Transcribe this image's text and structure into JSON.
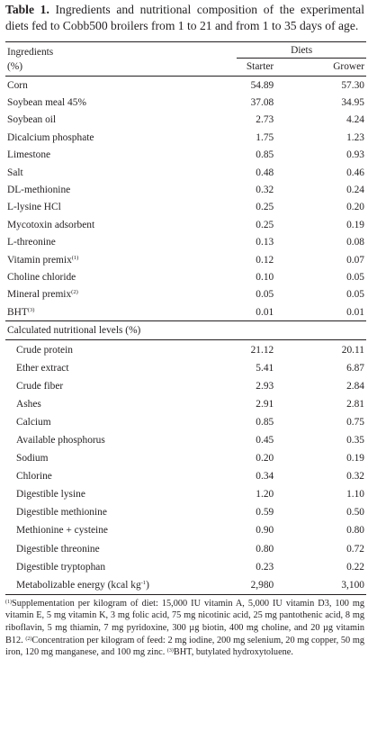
{
  "caption": {
    "label": "Table 1.",
    "text": " Ingredients and nutritional composition of the experimental diets fed to Cobb500 broilers from 1 to 21 and from 1 to 35 days of age."
  },
  "header": {
    "ingredients": "Ingredients",
    "unit": "(%)",
    "diets": "Diets",
    "starter": "Starter",
    "grower": "Grower"
  },
  "ingredients": [
    {
      "name": "Corn",
      "sup": "",
      "starter": "54.89",
      "grower": "57.30"
    },
    {
      "name": "Soybean meal 45%",
      "sup": "",
      "starter": "37.08",
      "grower": "34.95"
    },
    {
      "name": "Soybean oil",
      "sup": "",
      "starter": "2.73",
      "grower": "4.24"
    },
    {
      "name": "Dicalcium phosphate",
      "sup": "",
      "starter": "1.75",
      "grower": "1.23"
    },
    {
      "name": "Limestone",
      "sup": "",
      "starter": "0.85",
      "grower": "0.93"
    },
    {
      "name": "Salt",
      "sup": "",
      "starter": "0.48",
      "grower": "0.46"
    },
    {
      "name": "DL-methionine",
      "sup": "",
      "starter": "0.32",
      "grower": "0.24"
    },
    {
      "name": "L-lysine HCl",
      "sup": "",
      "starter": "0.25",
      "grower": "0.20"
    },
    {
      "name": "Mycotoxin adsorbent",
      "sup": "",
      "starter": "0.25",
      "grower": "0.19"
    },
    {
      "name": "L-threonine",
      "sup": "",
      "starter": "0.13",
      "grower": "0.08"
    },
    {
      "name": "Vitamin premix",
      "sup": "(1)",
      "starter": "0.12",
      "grower": "0.07"
    },
    {
      "name": "Choline chloride",
      "sup": "",
      "starter": "0.10",
      "grower": "0.05"
    },
    {
      "name": "Mineral premix",
      "sup": "(2)",
      "starter": "0.05",
      "grower": "0.05"
    },
    {
      "name": "BHT",
      "sup": "(3)",
      "starter": "0.01",
      "grower": "0.01"
    }
  ],
  "nutritional_heading": "Calculated nutritional levels (%)",
  "nutritional": [
    {
      "name": "Crude protein",
      "starter": "21.12",
      "grower": "20.11"
    },
    {
      "name": "Ether extract",
      "starter": "5.41",
      "grower": "6.87"
    },
    {
      "name": "Crude fiber",
      "starter": "2.93",
      "grower": "2.84"
    },
    {
      "name": "Ashes",
      "starter": "2.91",
      "grower": "2.81"
    },
    {
      "name": "Calcium",
      "starter": "0.85",
      "grower": "0.75"
    },
    {
      "name": "Available phosphorus",
      "starter": "0.45",
      "grower": "0.35"
    },
    {
      "name": "Sodium",
      "starter": "0.20",
      "grower": "0.19"
    },
    {
      "name": "Chlorine",
      "starter": "0.34",
      "grower": "0.32"
    },
    {
      "name": "Digestible lysine",
      "starter": "1.20",
      "grower": "1.10"
    },
    {
      "name": "Digestible methionine",
      "starter": "0.59",
      "grower": "0.50"
    },
    {
      "name": "Methionine + cysteine",
      "starter": "0.90",
      "grower": "0.80"
    },
    {
      "name": "Digestible threonine",
      "starter": "0.80",
      "grower": "0.72"
    },
    {
      "name": "Digestible tryptophan",
      "starter": "0.23",
      "grower": "0.22"
    }
  ],
  "energy": {
    "name": "Metabolizable energy (kcal kg",
    "unit_sup": "-1",
    "name_end": ")",
    "starter": "2,980",
    "grower": "3,100"
  },
  "footnotes": {
    "n1_mark": "(1)",
    "n1": "Supplementation per kilogram of diet: 15,000 IU vitamin A, 5,000 IU vitamin D3, 100 mg vitamin E, 5 mg vitamin K, 3 mg folic acid, 75 mg nicotinic acid, 25 mg pantothenic acid, 8 mg riboflavin, 5 mg thiamin, 7 mg pyridoxine, 300 µg biotin, 400 mg choline, and 20 µg vitamin B12. ",
    "n2_mark": "(2)",
    "n2": "Concentration per kilogram of feed: 2 mg iodine, 200 mg selenium, 20 mg copper, 50 mg iron, 120 mg manganese, and 100 mg zinc. ",
    "n3_mark": "(3)",
    "n3": "BHT, butylated hydroxytoluene."
  }
}
